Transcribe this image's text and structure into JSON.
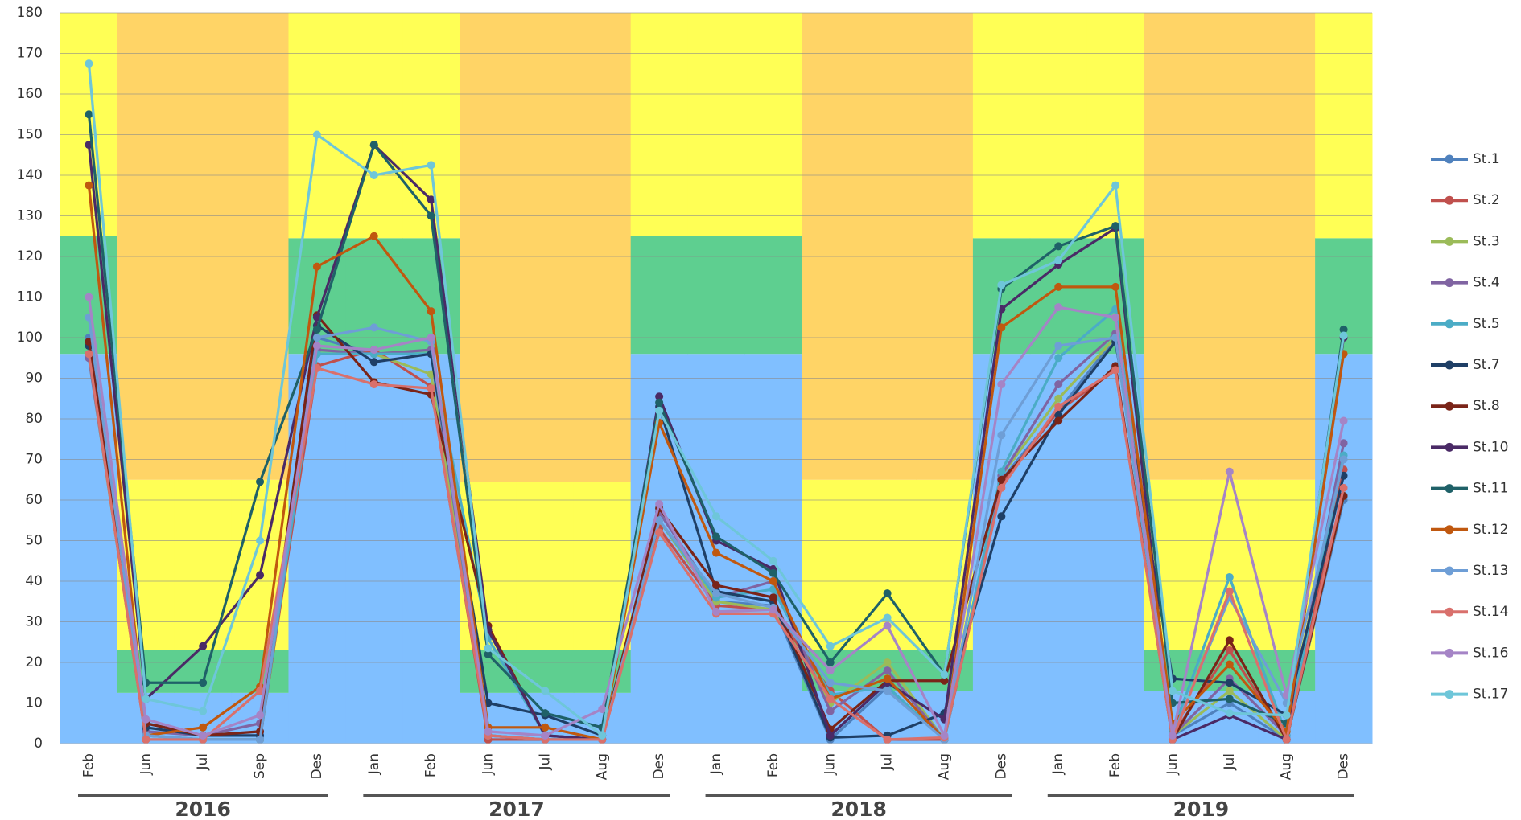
{
  "chart_data": {
    "type": "line",
    "categories": [
      "Feb",
      "Jun",
      "Jul",
      "Sep",
      "Des",
      "Jan",
      "Feb",
      "Jun",
      "Jul",
      "Aug",
      "Des",
      "Jan",
      "Feb",
      "Jun",
      "Jul",
      "Aug",
      "Des",
      "Jan",
      "Feb",
      "Jun",
      "Jul",
      "Aug",
      "Des"
    ],
    "groups": [
      {
        "label": "2016",
        "count": 5
      },
      {
        "label": "2017",
        "count": 6
      },
      {
        "label": "2018",
        "count": 6
      },
      {
        "label": "2019",
        "count": 6
      }
    ],
    "ylim": [
      0,
      180
    ],
    "yticks": [
      0,
      10,
      20,
      30,
      40,
      50,
      60,
      70,
      80,
      90,
      100,
      110,
      120,
      130,
      140,
      150,
      160,
      170,
      180
    ],
    "grid": true,
    "legend": "right",
    "zones": [
      {
        "color": "#80bfff",
        "values": [
          96,
          12.5,
          12.5,
          12.5,
          96,
          96,
          96,
          12.5,
          12.5,
          12.5,
          96,
          96,
          96,
          13,
          13,
          13,
          96,
          96,
          96,
          13,
          13,
          13,
          96
        ]
      },
      {
        "color": "#5ecf90",
        "values": [
          29,
          10.5,
          10.5,
          10.5,
          28.5,
          28.5,
          28.5,
          10.5,
          10.5,
          10.5,
          29,
          29,
          29,
          10,
          10,
          10,
          28.5,
          28.5,
          28.5,
          10,
          10,
          10,
          28.5
        ]
      },
      {
        "color": "#ffff55",
        "values": [
          55,
          42,
          42,
          42,
          55.5,
          55.5,
          55.5,
          41.5,
          41.5,
          41.5,
          55,
          55,
          55,
          42,
          42,
          42,
          55.5,
          55.5,
          55.5,
          42,
          42,
          42,
          55.5
        ]
      },
      {
        "color": "#ffd466",
        "values": [
          0,
          115,
          115,
          115,
          0,
          0,
          0,
          115.5,
          115.5,
          115.5,
          0,
          0,
          0,
          115,
          115,
          115,
          0,
          0,
          0,
          115,
          115,
          115,
          0
        ]
      }
    ],
    "series": [
      {
        "name": "St.1",
        "color": "#4f81bd",
        "values": [
          100,
          2,
          1,
          1,
          100,
          96,
          96,
          2,
          1,
          1,
          55,
          35,
          34,
          1,
          14,
          1,
          65,
          82,
          100,
          2,
          10,
          1,
          60
        ]
      },
      {
        "name": "St.2",
        "color": "#c0504d",
        "values": [
          96,
          1,
          1,
          1,
          93,
          97,
          88,
          1,
          1,
          1,
          53,
          34,
          33,
          13,
          1,
          1,
          64,
          82,
          92,
          2,
          23,
          1,
          67.5
        ]
      },
      {
        "name": "St.3",
        "color": "#9bbb59",
        "values": [
          95,
          2,
          1,
          1,
          97,
          96,
          91,
          2,
          1,
          1,
          55,
          35,
          33,
          10,
          20,
          1,
          66,
          85,
          100,
          2,
          13,
          1,
          61
        ]
      },
      {
        "name": "St.4",
        "color": "#8064a2",
        "values": [
          95,
          3,
          2,
          5,
          97,
          96,
          97,
          2,
          1,
          1,
          57,
          36,
          40,
          8,
          18,
          1,
          66,
          88.5,
          101,
          2,
          16,
          2,
          74
        ]
      },
      {
        "name": "St.5",
        "color": "#4bacc6",
        "values": [
          96,
          2,
          1,
          1,
          96,
          96,
          96,
          26,
          2,
          1,
          55,
          36,
          38,
          12,
          14,
          1,
          67,
          95,
          107,
          3,
          41,
          2,
          71
        ]
      },
      {
        "name": "St.7",
        "color": "#1f3f66",
        "values": [
          98,
          4,
          2,
          2,
          103,
          94,
          96,
          10,
          7,
          2,
          83,
          37.5,
          35,
          1.5,
          2,
          7.5,
          56,
          81,
          99,
          16,
          15,
          7,
          66
        ]
      },
      {
        "name": "St.8",
        "color": "#7a2418",
        "values": [
          99,
          5,
          2,
          3,
          105.5,
          89,
          86,
          29,
          2,
          1,
          58,
          39,
          36,
          3.5,
          15.5,
          15.5,
          65,
          79.5,
          93,
          1,
          25.5,
          1,
          61
        ]
      },
      {
        "name": "St.10",
        "color": "#4a2a66",
        "values": [
          147.5,
          11,
          24,
          41.5,
          105,
          147.5,
          134,
          28,
          2,
          1,
          85.5,
          50,
          43,
          2,
          15,
          6,
          107,
          118,
          127,
          1,
          7,
          1,
          100
        ]
      },
      {
        "name": "St.11",
        "color": "#1f6168",
        "values": [
          155,
          15,
          15,
          64.5,
          102,
          147.5,
          130,
          22,
          7.5,
          4,
          84,
          51,
          42,
          20,
          37,
          17,
          112,
          122.5,
          127.5,
          10,
          11,
          5,
          102
        ]
      },
      {
        "name": "St.12",
        "color": "#c0580f",
        "values": [
          137.5,
          2,
          4,
          14,
          117.5,
          125,
          106.5,
          4,
          4,
          1,
          79,
          47,
          40,
          11,
          16,
          1,
          102.5,
          112.5,
          112.5,
          5,
          19.5,
          3,
          96
        ]
      },
      {
        "name": "St.13",
        "color": "#6e9ed6",
        "values": [
          105,
          2,
          1,
          1,
          100,
          102.5,
          99,
          2,
          1,
          1,
          55,
          37,
          33.5,
          15,
          13,
          1,
          76,
          98,
          100,
          2,
          36,
          10,
          70
        ]
      },
      {
        "name": "St.14",
        "color": "#d9706c",
        "values": [
          96,
          1,
          1,
          13,
          92.5,
          88.5,
          87.5,
          2,
          1,
          1,
          52,
          32,
          32,
          11,
          1,
          1.5,
          63,
          83,
          92,
          1,
          37.5,
          1,
          63
        ]
      },
      {
        "name": "St.16",
        "color": "#a584c6",
        "values": [
          110,
          6,
          2,
          7,
          98,
          97,
          100,
          3,
          2,
          8.5,
          59,
          32.5,
          33,
          18,
          29,
          2,
          88.5,
          107.5,
          105,
          2,
          67,
          12,
          79.5
        ]
      },
      {
        "name": "St.17",
        "color": "#6ec6d9",
        "values": [
          167.5,
          11,
          8,
          50,
          150,
          140,
          142.5,
          23.5,
          13,
          2,
          82,
          56,
          45,
          24,
          31,
          17,
          113,
          119,
          137.5,
          13,
          7.5,
          7,
          100.5
        ]
      }
    ]
  }
}
